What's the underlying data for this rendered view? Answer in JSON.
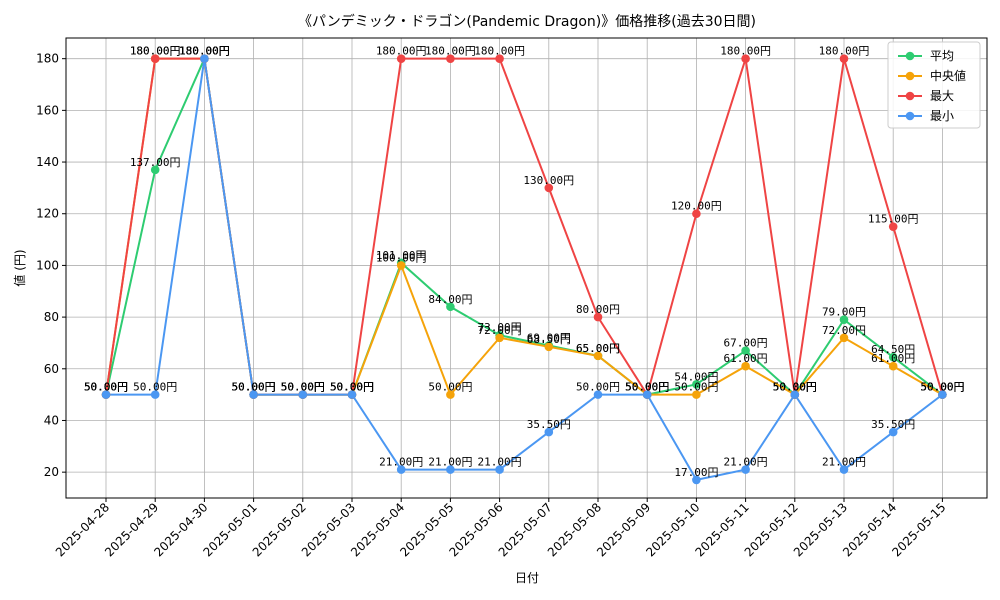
{
  "chart_data": {
    "type": "line",
    "title": "《パンデミック・ドラゴン(Pandemic Dragon)》価格推移(過去30日間)",
    "xlabel": "日付",
    "ylabel": "値 (円)",
    "ylim": [
      10,
      188
    ],
    "yticks": [
      20,
      40,
      60,
      80,
      100,
      120,
      140,
      160,
      180
    ],
    "grid": true,
    "legend_position": "top-right",
    "label_suffix": "円",
    "categories": [
      "2025-04-28",
      "2025-04-29",
      "2025-04-30",
      "2025-05-01",
      "2025-05-02",
      "2025-05-03",
      "2025-05-04",
      "2025-05-05",
      "2025-05-06",
      "2025-05-07",
      "2025-05-08",
      "2025-05-09",
      "2025-05-10",
      "2025-05-11",
      "2025-05-12",
      "2025-05-13",
      "2025-05-14",
      "2025-05-15"
    ],
    "series": [
      {
        "name": "平均",
        "color": "#2ecc71",
        "values": [
          50,
          137,
          180,
          50,
          50,
          50,
          101,
          84,
          73,
          69,
          65,
          50,
          54,
          67,
          50,
          79,
          64.5,
          50
        ]
      },
      {
        "name": "中央値",
        "color": "#f5a30a",
        "values": [
          50,
          180,
          180,
          50,
          50,
          50,
          100,
          50,
          72,
          68.5,
          65,
          50,
          50,
          61,
          50,
          72,
          61,
          50
        ]
      },
      {
        "name": "最大",
        "color": "#ef4444",
        "values": [
          50,
          180,
          180,
          50,
          50,
          50,
          180,
          180,
          180,
          130,
          80,
          50,
          120,
          180,
          50,
          180,
          115,
          50
        ]
      },
      {
        "name": "最小",
        "color": "#4b97f2",
        "values": [
          50,
          50,
          180,
          50,
          50,
          50,
          21,
          21,
          21,
          35.5,
          50,
          50,
          17,
          21,
          50,
          21,
          35.5,
          50
        ]
      }
    ]
  }
}
